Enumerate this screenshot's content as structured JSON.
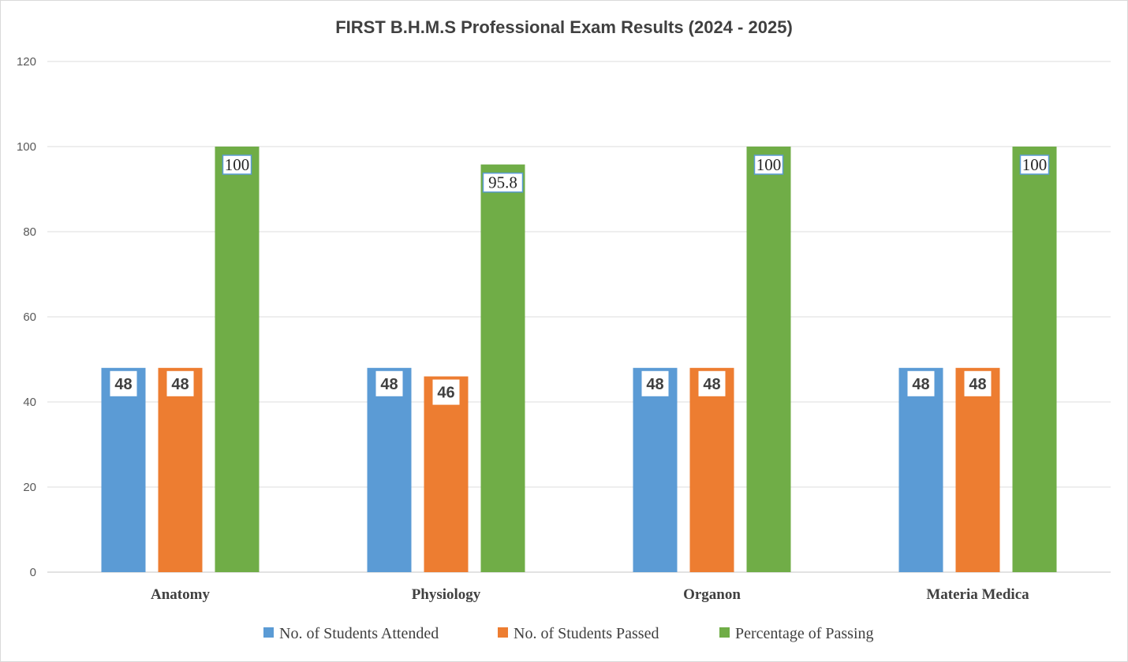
{
  "chart_data": {
    "type": "bar",
    "title": "FIRST B.H.M.S Professional Exam Results (2024 - 2025)",
    "xlabel": "",
    "ylabel": "",
    "ylim": [
      0,
      120
    ],
    "yticks": [
      0,
      20,
      40,
      60,
      80,
      100,
      120
    ],
    "grid": true,
    "legend_position": "bottom",
    "categories": [
      "Anatomy",
      "Physiology",
      "Organon",
      "Materia Medica"
    ],
    "series": [
      {
        "name": "No. of Students Attended",
        "color": "#5b9bd5",
        "values": [
          48,
          48,
          48,
          48
        ],
        "labels": [
          "48",
          "48",
          "48",
          "48"
        ]
      },
      {
        "name": "No. of Students Passed",
        "color": "#ed7d31",
        "values": [
          48,
          46,
          48,
          48
        ],
        "labels": [
          "48",
          "46",
          "48",
          "48"
        ]
      },
      {
        "name": "Percentage of Passing",
        "color": "#70ad47",
        "values": [
          100,
          95.8,
          100,
          100
        ],
        "labels": [
          "100",
          "95.8",
          "100",
          "100"
        ]
      }
    ]
  }
}
